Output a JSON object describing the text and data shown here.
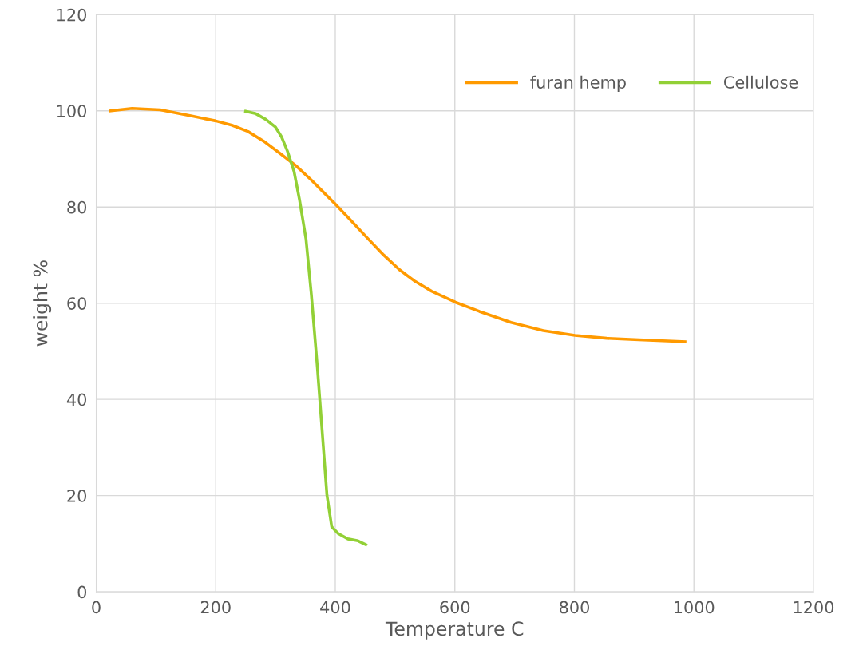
{
  "chart_data": {
    "type": "line",
    "xlabel": "Temperature C",
    "ylabel": "weight %",
    "xlim": [
      0,
      1200
    ],
    "xticks": [
      0,
      200,
      400,
      600,
      800,
      1000,
      1200
    ],
    "ylim": [
      0,
      120
    ],
    "yticks": [
      0,
      20,
      40,
      60,
      80,
      100,
      120
    ],
    "grid": true,
    "legend": "top right",
    "marker": "none",
    "line_style": "solid",
    "series": [
      {
        "name": "furan hemp",
        "color": "#ff9a00",
        "x": [
          24,
          60,
          107,
          160,
          200,
          227,
          254,
          280,
          307,
          334,
          360,
          400,
          427,
          454,
          481,
          507,
          534,
          561,
          601,
          641,
          694,
          748,
          801,
          854,
          908,
          985
        ],
        "values": [
          100,
          100.5,
          100.2,
          98.9,
          97.9,
          97,
          95.7,
          93.7,
          91.2,
          88.6,
          85.6,
          80.6,
          77.1,
          73.5,
          70,
          67,
          64.5,
          62.5,
          60.2,
          58.3,
          56,
          54.3,
          53.3,
          52.7,
          52.4,
          52
        ]
      },
      {
        "name": "Cellulose",
        "color": "#92d036",
        "x": [
          250,
          267,
          284,
          300,
          310,
          320,
          331,
          340,
          351,
          360,
          370,
          378,
          386,
          394,
          405,
          421,
          438,
          451
        ],
        "values": [
          99.9,
          99.4,
          98.2,
          96.6,
          94.6,
          91.6,
          87.4,
          81.6,
          73.3,
          61.7,
          46.7,
          33.4,
          20.1,
          13.5,
          12.1,
          11,
          10.6,
          9.8
        ]
      }
    ]
  }
}
